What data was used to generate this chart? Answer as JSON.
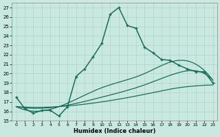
{
  "bg_color": "#c8e8e0",
  "grid_color": "#afd4cc",
  "line_color": "#1a6b5a",
  "xlabel": "Humidex (Indice chaleur)",
  "xlim": [
    -0.5,
    23.5
  ],
  "ylim": [
    15,
    27.5
  ],
  "yticks": [
    15,
    16,
    17,
    18,
    19,
    20,
    21,
    22,
    23,
    24,
    25,
    26,
    27
  ],
  "xticks": [
    0,
    1,
    2,
    3,
    4,
    5,
    6,
    7,
    8,
    9,
    10,
    11,
    12,
    13,
    14,
    15,
    16,
    17,
    18,
    19,
    20,
    21,
    22,
    23
  ],
  "main_x": [
    0,
    1,
    2,
    3,
    4,
    5,
    6,
    7,
    8,
    9,
    10,
    11,
    12,
    13,
    14,
    15,
    16,
    17,
    18,
    19,
    20,
    21,
    22,
    23
  ],
  "main_y": [
    17.5,
    16.3,
    15.8,
    16.1,
    16.1,
    15.5,
    16.5,
    19.7,
    20.5,
    21.8,
    23.2,
    26.3,
    27.0,
    25.1,
    24.8,
    22.8,
    22.2,
    21.5,
    21.4,
    20.9,
    20.5,
    20.2,
    20.2,
    19.0
  ],
  "ref1_x": [
    0,
    5,
    10,
    15,
    19,
    21,
    23
  ],
  "ref1_y": [
    16.5,
    16.5,
    18.5,
    20.0,
    21.4,
    21.0,
    19.3
  ],
  "ref2_x": [
    0,
    5,
    10,
    15,
    19,
    21,
    23
  ],
  "ref2_y": [
    16.5,
    16.5,
    17.5,
    18.8,
    20.1,
    20.3,
    19.3
  ],
  "ref3_x": [
    0,
    5,
    10,
    15,
    19,
    21,
    23
  ],
  "ref3_y": [
    16.5,
    16.5,
    17.0,
    17.8,
    18.5,
    18.7,
    18.8
  ]
}
